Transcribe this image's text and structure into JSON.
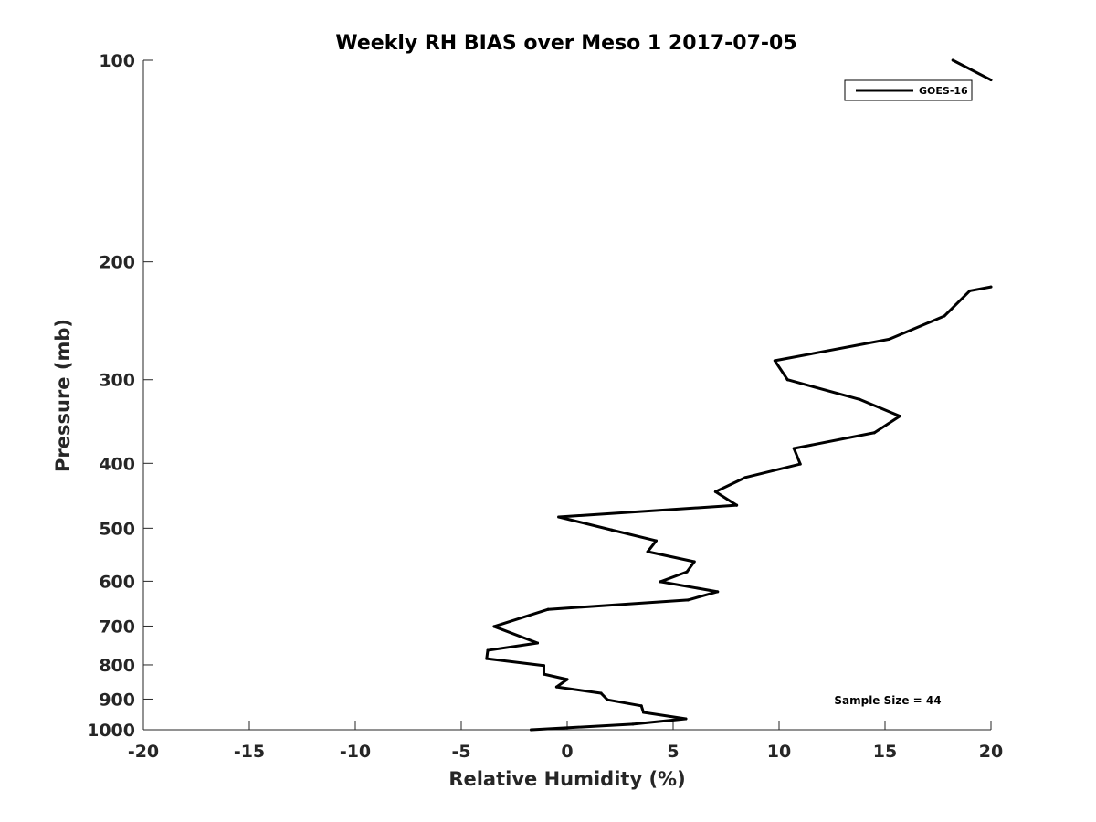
{
  "chart_data": {
    "type": "line",
    "title": "Weekly RH BIAS over Meso 1 2017-07-05",
    "xlabel": "Relative Humidity (%)",
    "ylabel": "Pressure (mb)",
    "xlim": [
      -20,
      20
    ],
    "ylim": [
      1000,
      100
    ],
    "yscale": "log",
    "xticks": [
      -20,
      -15,
      -10,
      -5,
      0,
      5,
      10,
      15,
      20
    ],
    "yticks": [
      100,
      200,
      300,
      400,
      500,
      600,
      700,
      800,
      900,
      1000
    ],
    "grid": false,
    "legend_position": "top-right",
    "annotation": "Sample Size = 44",
    "series": [
      {
        "name": "GOES-16",
        "color": "#000000",
        "segments": [
          [
            [
              -1.7,
              1000
            ],
            [
              3.1,
              981
            ],
            [
              5.6,
              963
            ],
            [
              3.6,
              942
            ],
            [
              3.5,
              921
            ],
            [
              1.9,
              902
            ],
            [
              1.6,
              882
            ],
            [
              -0.5,
              863
            ],
            [
              0.0,
              841
            ],
            [
              -1.1,
              826
            ],
            [
              -1.1,
              802
            ],
            [
              -3.8,
              783
            ],
            [
              -3.75,
              761
            ],
            [
              -1.4,
              742
            ],
            [
              -3.45,
              701
            ],
            [
              -0.9,
              661
            ],
            [
              5.7,
              640
            ],
            [
              7.1,
              622
            ],
            [
              4.4,
              601
            ],
            [
              5.65,
              581
            ],
            [
              6.0,
              561
            ],
            [
              3.8,
              542
            ],
            [
              4.2,
              522
            ],
            [
              2.1,
              503
            ],
            [
              -0.4,
              481
            ],
            [
              8.0,
              462
            ],
            [
              7.0,
              441
            ],
            [
              8.4,
              420
            ],
            [
              11.0,
              401
            ],
            [
              10.7,
              380
            ],
            [
              14.5,
              360
            ],
            [
              15.7,
              340
            ],
            [
              13.8,
              321
            ],
            [
              10.4,
              300
            ],
            [
              9.8,
              281
            ],
            [
              15.2,
              261
            ],
            [
              17.8,
              241
            ],
            [
              19.0,
              221
            ],
            [
              20.0,
              218
            ]
          ],
          [
            [
              18.2,
              100
            ],
            [
              20.0,
              107
            ]
          ]
        ]
      }
    ]
  }
}
